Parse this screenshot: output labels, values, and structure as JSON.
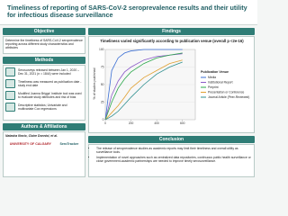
{
  "header": {
    "title": "Timeliness of reporting of SARS-CoV-2 seroprevalence results and their utility for infectious disease surveillance"
  },
  "objective": {
    "heading": "Objective",
    "text": "Determine the timeliness of SARS-CoV-2 seroprevalence reporting across different study characteristics and attributes"
  },
  "methods": {
    "heading": "Methods",
    "items": [
      "Serosurveys released between Jan 1, 2020 – Dec 31, 2021 (n = 1844) were included",
      "Timeliness was measured as publication date - study end date",
      "Modified Joanna Briggs' Institute tool was used to evaluate study attributes and risk of bias",
      "Descriptive statistics; Univariate and multivariate Cox regressions"
    ]
  },
  "authors": {
    "heading": "Authors & Affiliations",
    "names": "Natasha Ilincic, Claire Donnici, et al.",
    "logos": [
      "UNIVERSITY OF CALGARY",
      "SeroTracker"
    ]
  },
  "findings": {
    "heading": "Findings",
    "chart_data": {
      "type": "line",
      "title": "Timeliness varied significantly according to publication venue (overall p <2e-16)",
      "y_label": "% of studies published",
      "legend_title": "Publication Venue",
      "x": [
        0,
        50,
        100,
        150,
        200,
        300,
        400,
        500,
        600
      ],
      "xlim": [
        0,
        700
      ],
      "xticks": [
        0,
        200,
        400,
        600
      ],
      "ylim": [
        0,
        100
      ],
      "yticks": [
        0,
        25,
        50,
        75,
        100
      ],
      "series": [
        {
          "name": "Media",
          "color": "#3b6fd4",
          "values": [
            0,
            70,
            88,
            95,
            98,
            100,
            100,
            100,
            100
          ]
        },
        {
          "name": "Institutional Report",
          "color": "#8a5ac8",
          "values": [
            0,
            35,
            55,
            68,
            75,
            85,
            90,
            92,
            94
          ]
        },
        {
          "name": "Preprint",
          "color": "#2aa84a",
          "values": [
            0,
            25,
            45,
            58,
            68,
            80,
            88,
            92,
            95
          ]
        },
        {
          "name": "Presentation or Conference",
          "color": "#e0a030",
          "values": [
            0,
            10,
            20,
            32,
            45,
            60,
            70,
            80,
            85
          ]
        },
        {
          "name": "Journal Article (Peer-Reviewed)",
          "color": "#2f8f8f",
          "values": [
            0,
            5,
            12,
            22,
            32,
            50,
            65,
            75,
            82
          ]
        }
      ]
    }
  },
  "conclusion": {
    "heading": "Conclusion",
    "items": [
      "The release of seroprevalence studies as academic reports may limit their timeliness and overall utility as surveillance tools.",
      "Implementation of novel approaches such as centralized data repositories, continuous public health surveillance or close government-academic partnerships are needed to improve timely serosurveillance."
    ]
  }
}
